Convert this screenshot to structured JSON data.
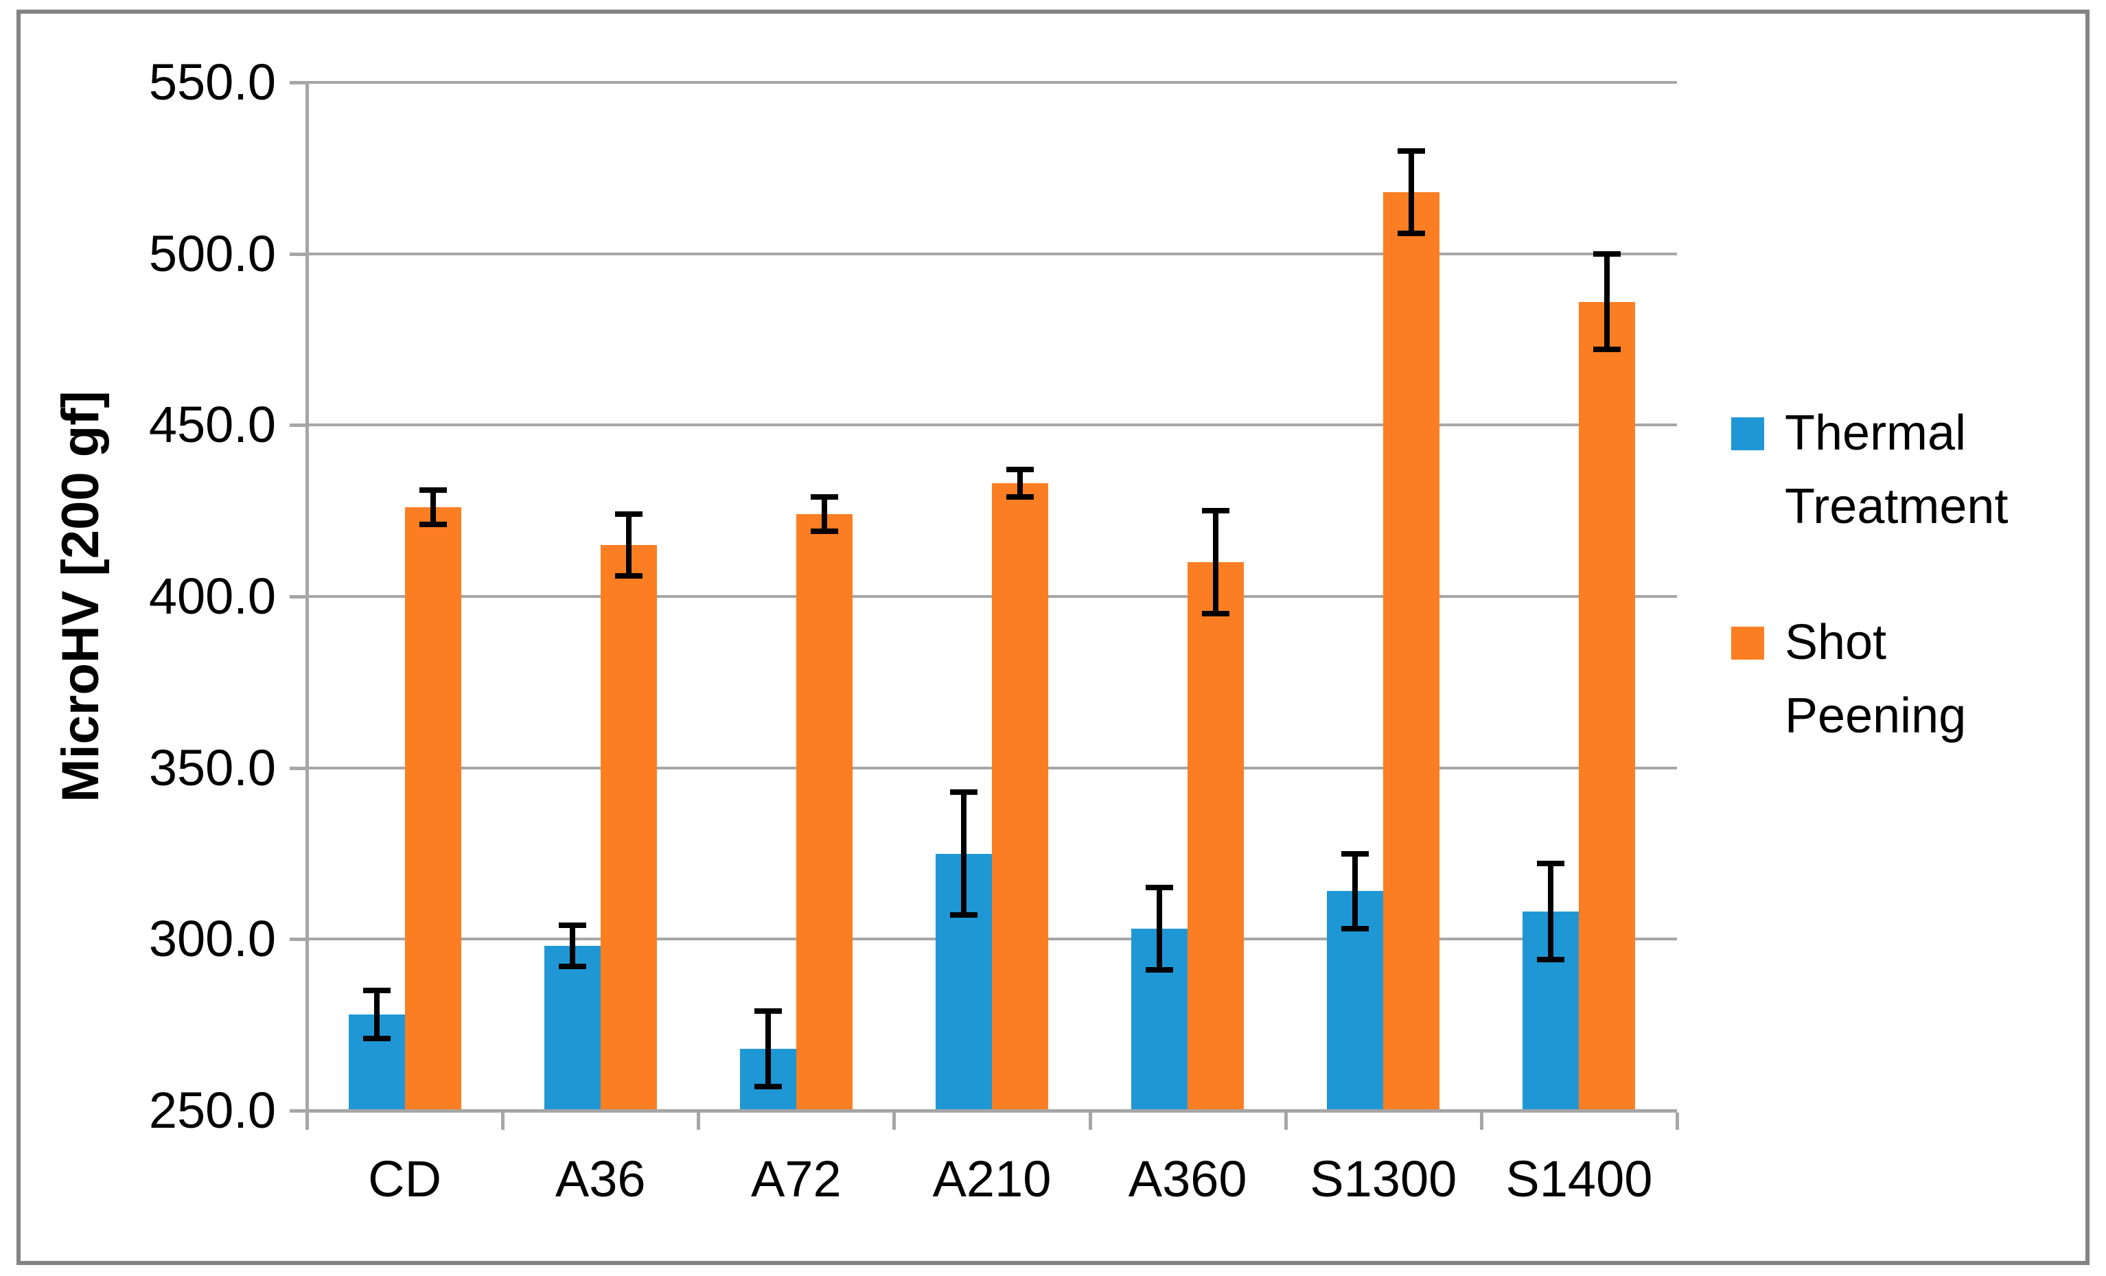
{
  "figure": {
    "background": "#ffffff",
    "border_color": "#848484"
  },
  "axis": {
    "line_color": "#a6a6a6",
    "gridline_color": "#a6a6a6",
    "tick_color": "#a6a6a6",
    "text_color": "#000000",
    "errorbar_color": "#000000"
  },
  "chart_data": {
    "type": "bar",
    "title": "",
    "xlabel": "",
    "ylabel": "MicroHV [200 gf]",
    "ylim": [
      250,
      550
    ],
    "ytick_step": 50,
    "ytick_labels": [
      "550.0",
      "500.0",
      "450.0",
      "400.0",
      "350.0",
      "300.0",
      "250.0"
    ],
    "grid": true,
    "legend_position": "right",
    "categories": [
      "CD",
      "A36",
      "A72",
      "A210",
      "A360",
      "S1300",
      "S1400"
    ],
    "series": [
      {
        "name": "Thermal Treatment",
        "color": "#2097d5",
        "values": [
          278,
          298,
          268,
          325,
          303,
          314,
          308
        ],
        "errors": [
          7,
          6,
          11,
          18,
          12,
          11,
          14
        ]
      },
      {
        "name": "Shot Peening",
        "color": "#fc7e23",
        "values": [
          426,
          415,
          424,
          433,
          410,
          518,
          486
        ],
        "errors": [
          5,
          9,
          5,
          4,
          15,
          12,
          14
        ]
      }
    ]
  }
}
